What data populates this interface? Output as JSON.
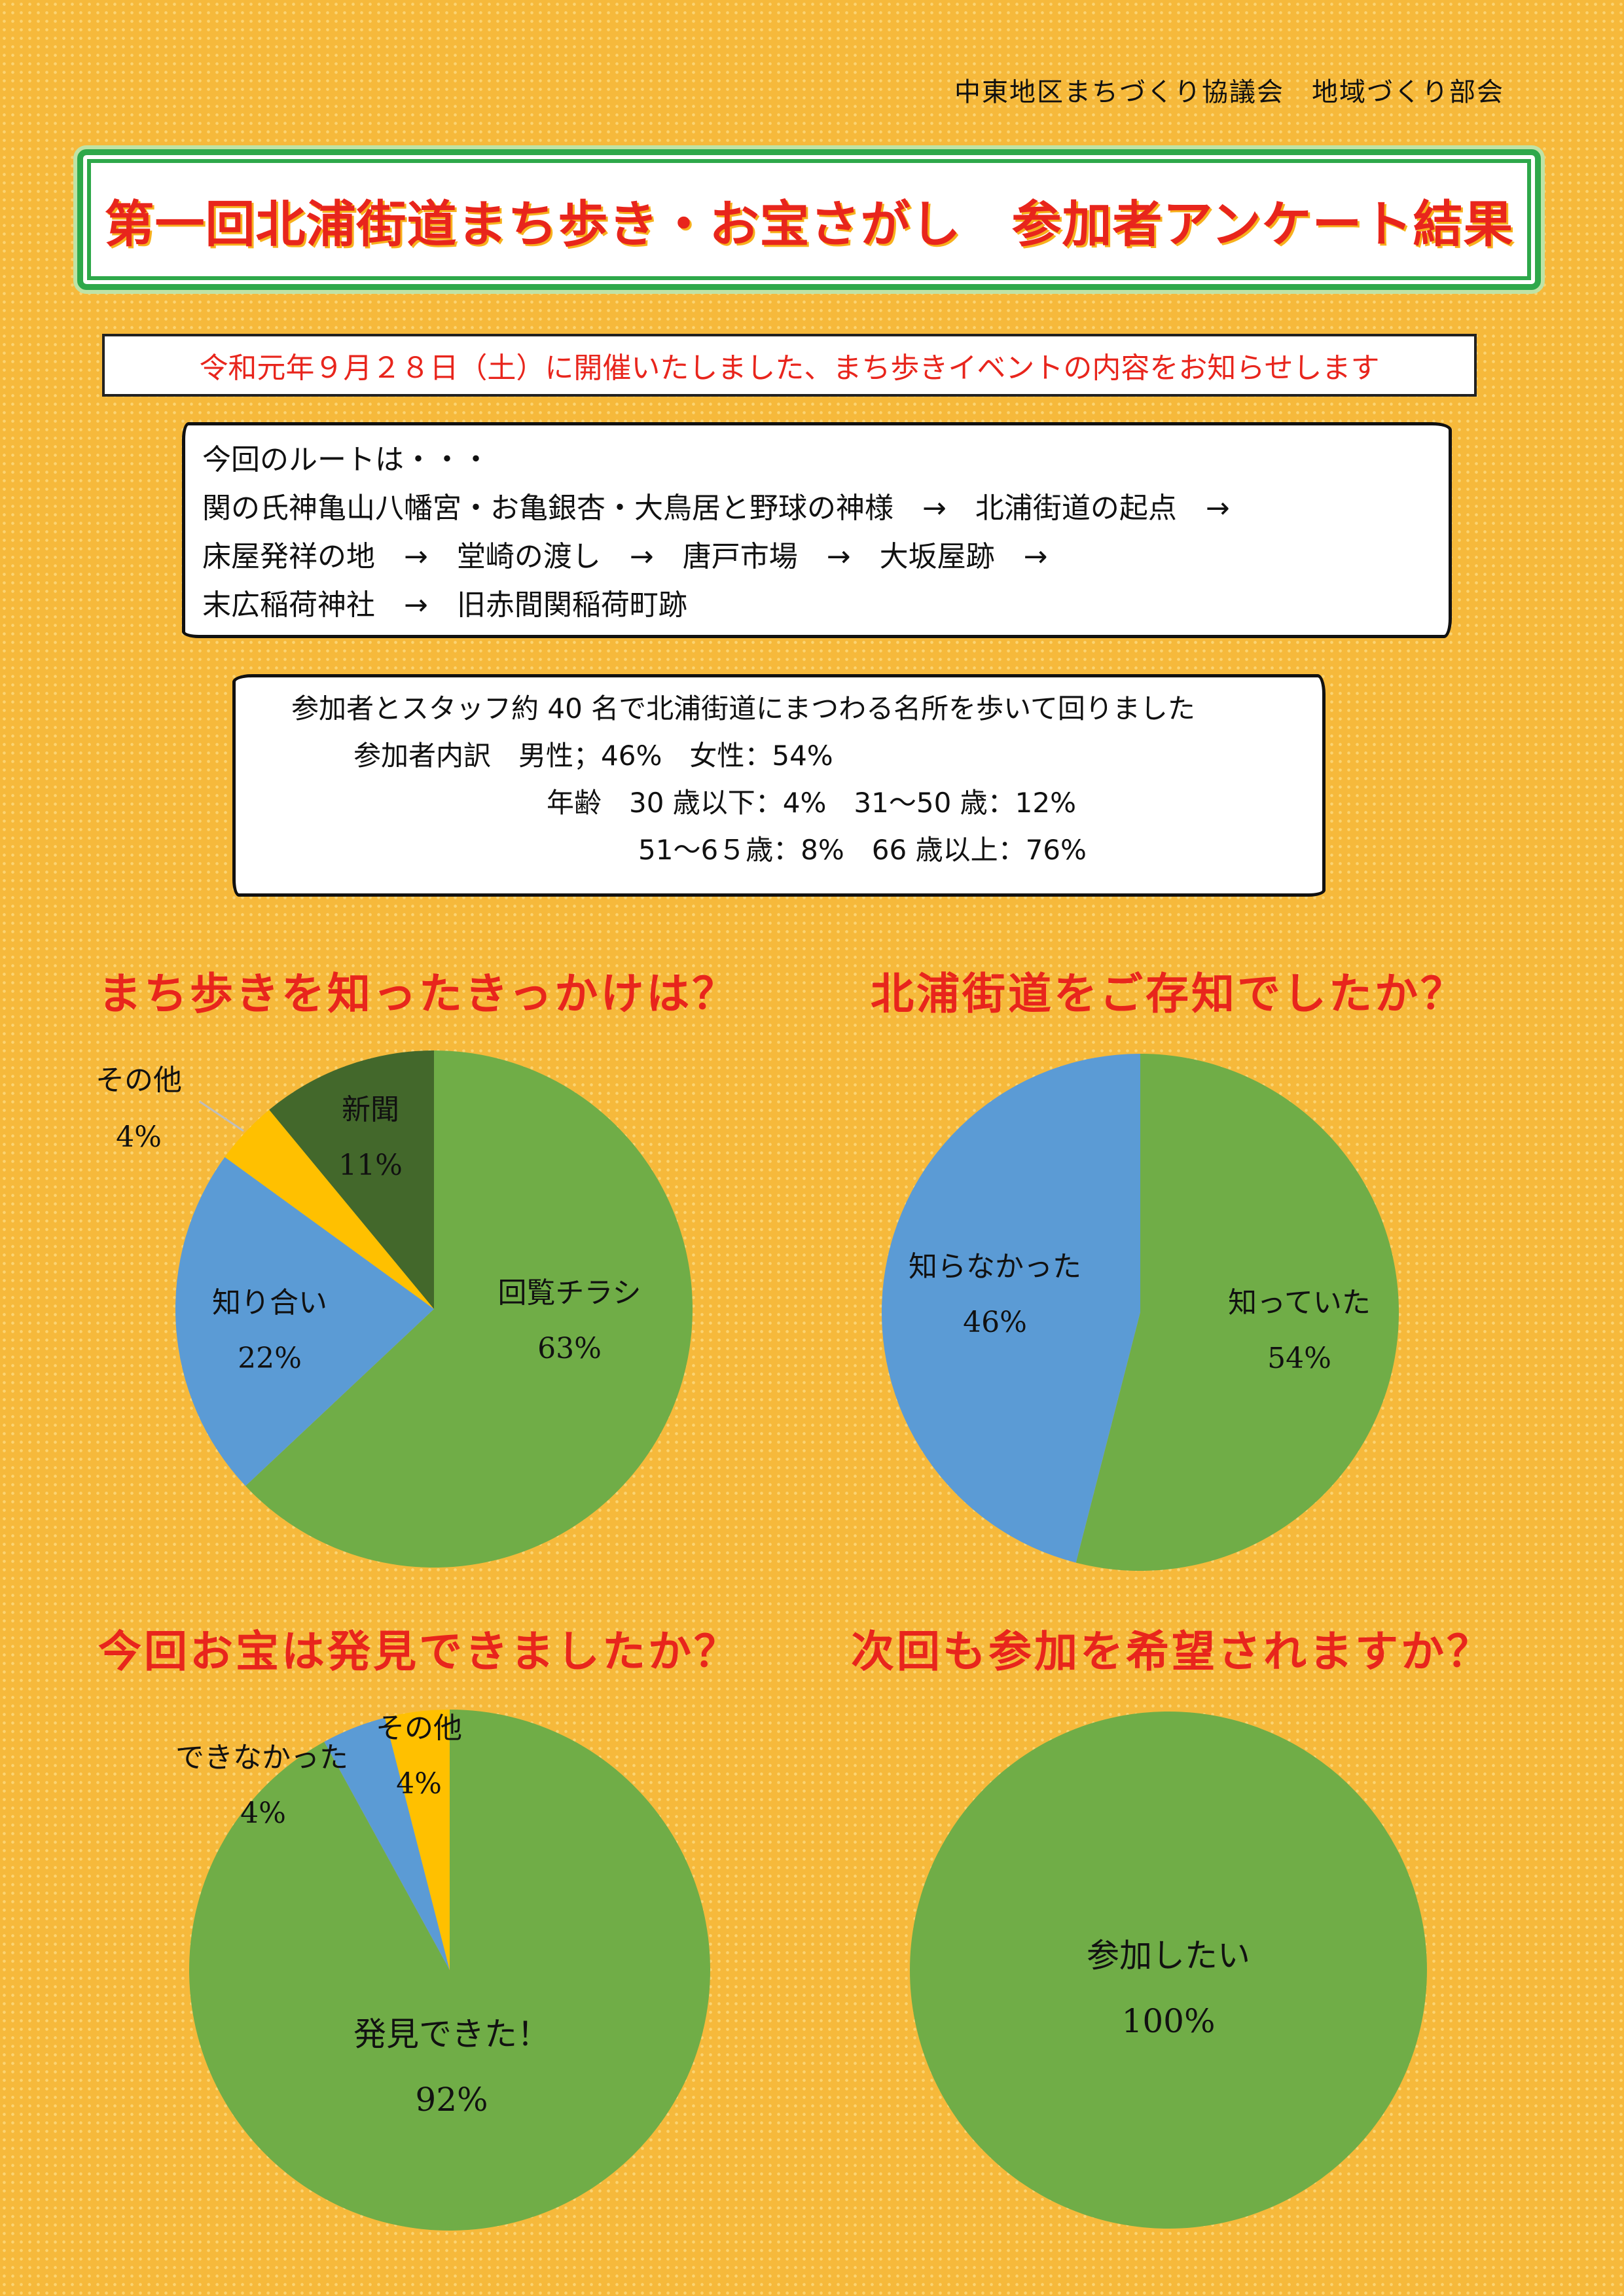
{
  "header": {
    "organization": "中東地区まちづくり協議会　地域づくり部会",
    "title": "第一回北浦街道まち歩き・お宝さがし　参加者アンケート結果"
  },
  "intro": "令和元年９月２８日（土）に開催いたしました、まち歩きイベントの内容をお知らせします",
  "route": {
    "lines": [
      "今回のルートは・・・",
      "関の氏神亀山八幡宮・お亀銀杏・大鳥居と野球の神様　→　北浦街道の起点　→",
      "床屋発祥の地　→　堂崎の渡し　→　唐戸市場　→　大坂屋跡　→",
      "末広稲荷神社　→　旧赤間関稲荷町跡"
    ]
  },
  "participants": {
    "lines": [
      "参加者とスタッフ約 40 名で北浦街道にまつわる名所を歩いて回りました",
      "参加者内訳　男性；46%　女性：54%",
      "年齢　30 歳以下：4%　31～50 歳：12%",
      "51～6５歳：8%　66 歳以上：76%"
    ]
  },
  "colors": {
    "background": "#f6b93b",
    "title_red": "#e8251c",
    "border_green": "#2ea84a",
    "slice_green": "#70ad47",
    "slice_blue": "#5b9bd5",
    "slice_orange": "#ffc000",
    "slice_dark_green": "#43682b"
  },
  "chart_data": [
    {
      "type": "pie",
      "title": "まち歩きを知ったきっかけは？",
      "slices": [
        {
          "label": "回覧チラシ",
          "value": 63,
          "display": "63%",
          "color": "#70ad47"
        },
        {
          "label": "知り合い",
          "value": 22,
          "display": "22%",
          "color": "#5b9bd5"
        },
        {
          "label": "その他",
          "value": 4,
          "display": "4%",
          "color": "#ffc000"
        },
        {
          "label": "新聞",
          "value": 11,
          "display": "11%",
          "color": "#43682b"
        }
      ]
    },
    {
      "type": "pie",
      "title": "北浦街道をご存知でしたか？",
      "slices": [
        {
          "label": "知っていた",
          "value": 54,
          "display": "54%",
          "color": "#70ad47"
        },
        {
          "label": "知らなかった",
          "value": 46,
          "display": "46%",
          "color": "#5b9bd5"
        }
      ]
    },
    {
      "type": "pie",
      "title": "今回お宝は発見できましたか？",
      "slices": [
        {
          "label": "発見できた！",
          "value": 92,
          "display": "92%",
          "color": "#70ad47"
        },
        {
          "label": "できなかった",
          "value": 4,
          "display": "4%",
          "color": "#5b9bd5"
        },
        {
          "label": "その他",
          "value": 4,
          "display": "4%",
          "color": "#ffc000"
        }
      ]
    },
    {
      "type": "pie",
      "title": "次回も参加を希望されますか？",
      "slices": [
        {
          "label": "参加したい",
          "value": 100,
          "display": "100%",
          "color": "#70ad47"
        }
      ]
    }
  ]
}
